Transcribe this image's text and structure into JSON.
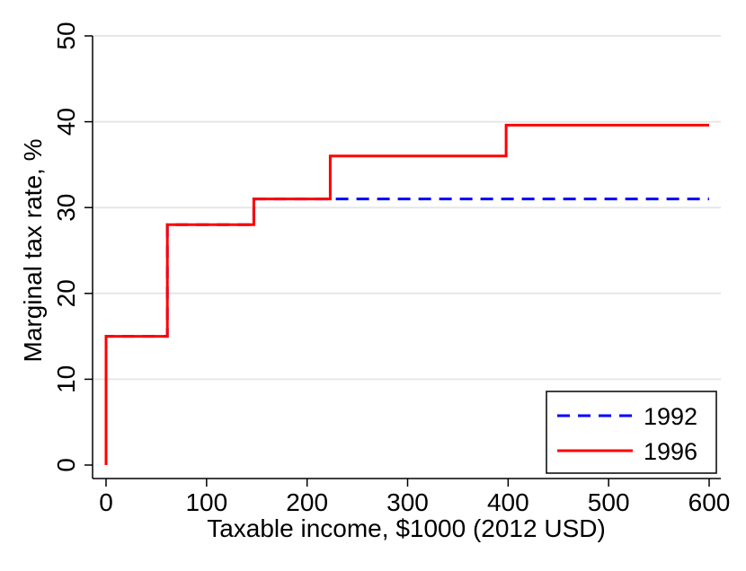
{
  "chart_data": {
    "type": "line",
    "title": "",
    "xlabel": "Taxable income, $1000 (2012 USD)",
    "ylabel": "Marginal tax rate, %",
    "xlim": [
      0,
      600
    ],
    "ylim": [
      0,
      50
    ],
    "xticks": [
      0,
      100,
      200,
      300,
      400,
      500,
      600
    ],
    "yticks": [
      0,
      10,
      20,
      30,
      40,
      50
    ],
    "grid": "horizontal",
    "legend": "bottom-right",
    "series": [
      {
        "name": "1992",
        "color": "#0000ff",
        "dash": "dashed",
        "x": [
          0,
          0,
          61,
          61,
          147,
          147,
          600
        ],
        "y": [
          0,
          15,
          15,
          28,
          28,
          31,
          31
        ]
      },
      {
        "name": "1996",
        "color": "#ff0000",
        "dash": "solid",
        "x": [
          0,
          0,
          61,
          61,
          147,
          147,
          223,
          223,
          398,
          398,
          600
        ],
        "y": [
          0,
          15,
          15,
          28,
          28,
          31,
          31,
          36,
          36,
          39.6,
          39.6
        ]
      }
    ]
  }
}
